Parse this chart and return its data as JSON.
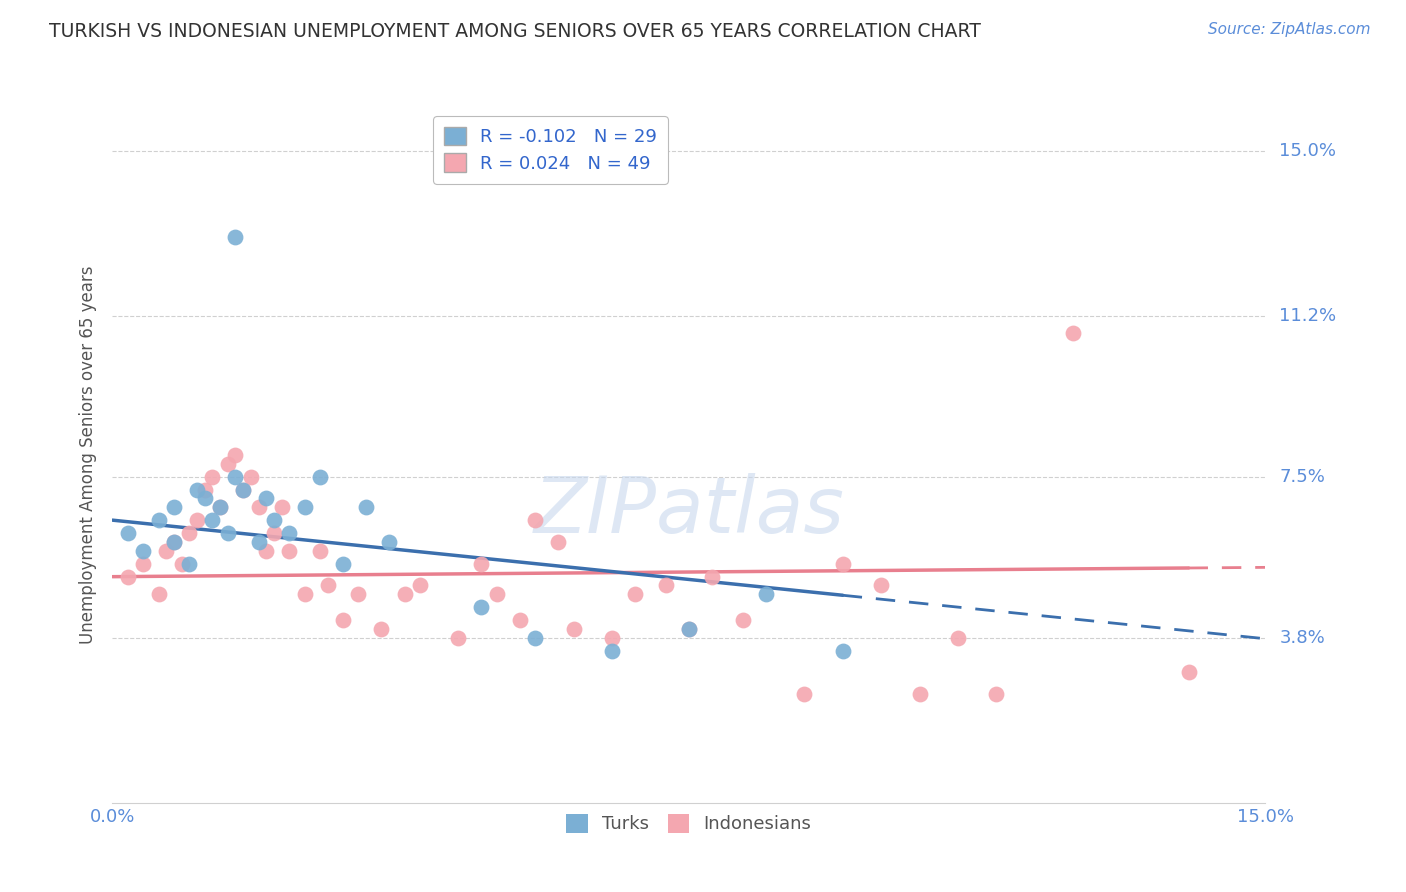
{
  "title": "TURKISH VS INDONESIAN UNEMPLOYMENT AMONG SENIORS OVER 65 YEARS CORRELATION CHART",
  "source": "Source: ZipAtlas.com",
  "ylabel": "Unemployment Among Seniors over 65 years",
  "xlim": [
    0,
    0.15
  ],
  "ylim": [
    0,
    0.16
  ],
  "yticks": [
    0.038,
    0.075,
    0.112,
    0.15
  ],
  "ytick_labels": [
    "3.8%",
    "7.5%",
    "11.2%",
    "15.0%"
  ],
  "turks_R": -0.102,
  "turks_N": 29,
  "indonesians_R": 0.024,
  "indonesians_N": 49,
  "turks_color": "#7bafd4",
  "indonesians_color": "#f4a7b0",
  "turks_line_color": "#3b6fad",
  "indonesians_line_color": "#e87f8e",
  "background_color": "#ffffff",
  "turks_x": [
    0.002,
    0.004,
    0.006,
    0.008,
    0.008,
    0.01,
    0.011,
    0.012,
    0.013,
    0.014,
    0.015,
    0.016,
    0.017,
    0.019,
    0.02,
    0.021,
    0.023,
    0.025,
    0.027,
    0.03,
    0.033,
    0.036,
    0.048,
    0.055,
    0.065,
    0.075,
    0.085,
    0.095,
    0.016
  ],
  "turks_y": [
    0.062,
    0.058,
    0.065,
    0.06,
    0.068,
    0.055,
    0.072,
    0.07,
    0.065,
    0.068,
    0.062,
    0.075,
    0.072,
    0.06,
    0.07,
    0.065,
    0.062,
    0.068,
    0.075,
    0.055,
    0.068,
    0.06,
    0.045,
    0.038,
    0.035,
    0.04,
    0.048,
    0.035,
    0.13
  ],
  "indonesians_x": [
    0.002,
    0.004,
    0.006,
    0.007,
    0.008,
    0.009,
    0.01,
    0.011,
    0.012,
    0.013,
    0.014,
    0.015,
    0.016,
    0.017,
    0.018,
    0.019,
    0.02,
    0.021,
    0.022,
    0.023,
    0.025,
    0.027,
    0.028,
    0.03,
    0.032,
    0.035,
    0.038,
    0.04,
    0.045,
    0.048,
    0.05,
    0.053,
    0.055,
    0.058,
    0.06,
    0.065,
    0.068,
    0.072,
    0.075,
    0.078,
    0.082,
    0.09,
    0.095,
    0.1,
    0.105,
    0.11,
    0.115,
    0.125,
    0.14
  ],
  "indonesians_y": [
    0.052,
    0.055,
    0.048,
    0.058,
    0.06,
    0.055,
    0.062,
    0.065,
    0.072,
    0.075,
    0.068,
    0.078,
    0.08,
    0.072,
    0.075,
    0.068,
    0.058,
    0.062,
    0.068,
    0.058,
    0.048,
    0.058,
    0.05,
    0.042,
    0.048,
    0.04,
    0.048,
    0.05,
    0.038,
    0.055,
    0.048,
    0.042,
    0.065,
    0.06,
    0.04,
    0.038,
    0.048,
    0.05,
    0.04,
    0.052,
    0.042,
    0.025,
    0.055,
    0.05,
    0.025,
    0.038,
    0.025,
    0.108,
    0.03
  ]
}
